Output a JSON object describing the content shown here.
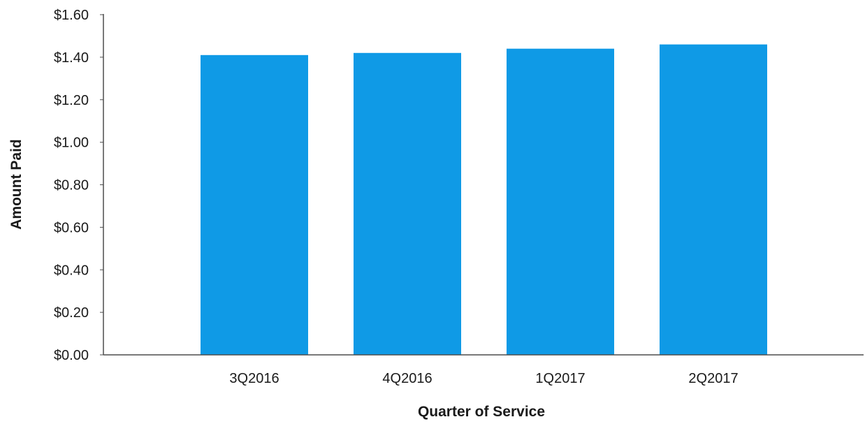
{
  "chart_data": {
    "type": "bar",
    "title": "",
    "xlabel": "Quarter of Service",
    "ylabel": "Amount Paid",
    "categories": [
      "3Q2016",
      "4Q2016",
      "1Q2017",
      "2Q2017"
    ],
    "series": [
      {
        "values": [
          1.41,
          1.42,
          1.44,
          1.46
        ]
      }
    ],
    "ylim": [
      0,
      1.6
    ],
    "yticks": [
      0.0,
      0.2,
      0.4,
      0.6,
      0.8,
      1.0,
      1.2,
      1.4,
      1.6
    ],
    "ytick_labels": [
      "$0.00",
      "$0.20",
      "$0.40",
      "$0.60",
      "$0.80",
      "$1.00",
      "$1.20",
      "$1.40",
      "$1.60"
    ],
    "grid": false,
    "legend": "none",
    "bar_color": "#0f9ae6",
    "axis_color": "#4d4d4d"
  }
}
